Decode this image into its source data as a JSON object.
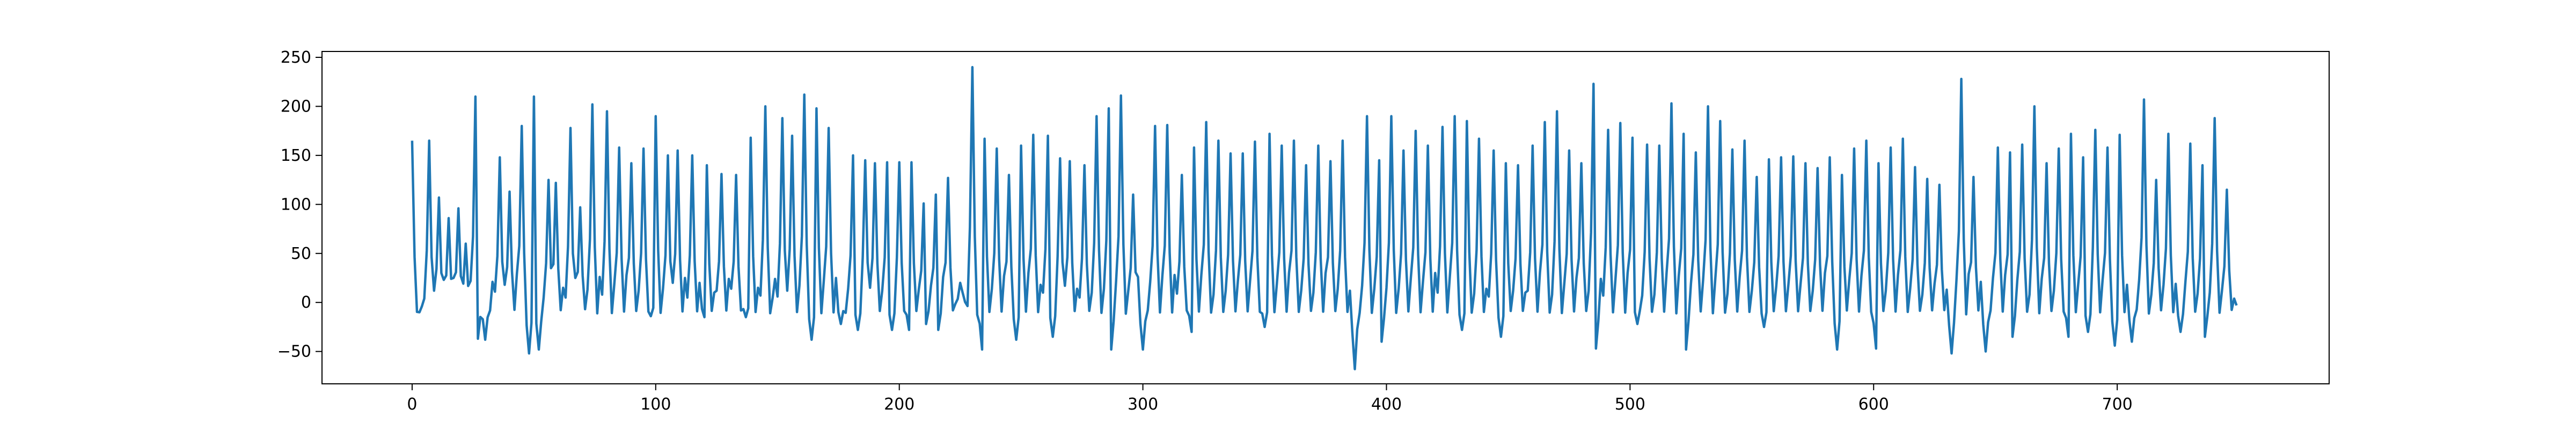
{
  "chart_data": {
    "type": "line",
    "title": "",
    "xlabel": "",
    "ylabel": "",
    "xlim": [
      -37,
      787
    ],
    "ylim": [
      -83,
      256
    ],
    "x_ticks": [
      0,
      100,
      200,
      300,
      400,
      500,
      600,
      700
    ],
    "y_ticks": [
      -50,
      0,
      50,
      100,
      150,
      200,
      250
    ],
    "grid": false,
    "legend": "none",
    "series": [
      {
        "color": "#1f77b4",
        "x_start": 0,
        "x_end": 749,
        "waveform": "repeating sharp peaks with small secondary bumps and troughs (ECG-like)",
        "spikes": [
          [
            0,
            165
          ],
          [
            7,
            165
          ],
          [
            11,
            107
          ],
          [
            15,
            86
          ],
          [
            19,
            96
          ],
          [
            22,
            60
          ],
          [
            26,
            210
          ],
          [
            30,
            128
          ],
          [
            36,
            148
          ],
          [
            40,
            113
          ],
          [
            45,
            180
          ],
          [
            50,
            210
          ],
          [
            56,
            125
          ],
          [
            59,
            122
          ],
          [
            65,
            178
          ],
          [
            69,
            97
          ],
          [
            74,
            202
          ],
          [
            80,
            195
          ],
          [
            85,
            158
          ],
          [
            90,
            142
          ],
          [
            95,
            157
          ],
          [
            100,
            190
          ],
          [
            105,
            150
          ],
          [
            109,
            155
          ],
          [
            115,
            150
          ],
          [
            121,
            140
          ],
          [
            127,
            131
          ],
          [
            133,
            130
          ],
          [
            139,
            168
          ],
          [
            145,
            200
          ],
          [
            152,
            188
          ],
          [
            156,
            170
          ],
          [
            161,
            212
          ],
          [
            166,
            198
          ],
          [
            171,
            178
          ],
          [
            176,
            190
          ],
          [
            181,
            150
          ],
          [
            186,
            145
          ],
          [
            190,
            142
          ],
          [
            195,
            143
          ],
          [
            200,
            143
          ],
          [
            205,
            143
          ],
          [
            210,
            101
          ],
          [
            215,
            110
          ],
          [
            220,
            127
          ],
          [
            230,
            240
          ],
          [
            235,
            167
          ],
          [
            240,
            157
          ],
          [
            245,
            130
          ],
          [
            250,
            160
          ],
          [
            255,
            171
          ],
          [
            261,
            170
          ],
          [
            266,
            147
          ],
          [
            270,
            144
          ],
          [
            276,
            140
          ],
          [
            281,
            190
          ],
          [
            286,
            198
          ],
          [
            291,
            211
          ],
          [
            296,
            110
          ],
          [
            300,
            128
          ],
          [
            305,
            180
          ],
          [
            310,
            181
          ],
          [
            316,
            130
          ],
          [
            321,
            158
          ],
          [
            326,
            184
          ],
          [
            331,
            165
          ],
          [
            336,
            152
          ],
          [
            341,
            152
          ],
          [
            346,
            164
          ],
          [
            352,
            172
          ],
          [
            357,
            160
          ],
          [
            362,
            165
          ],
          [
            367,
            140
          ],
          [
            372,
            160
          ],
          [
            377,
            144
          ],
          [
            382,
            165
          ],
          [
            387,
            193
          ],
          [
            392,
            190
          ],
          [
            397,
            145
          ],
          [
            402,
            190
          ],
          [
            407,
            155
          ],
          [
            412,
            175
          ],
          [
            417,
            160
          ],
          [
            423,
            179
          ],
          [
            428,
            190
          ],
          [
            433,
            185
          ],
          [
            438,
            167
          ],
          [
            444,
            155
          ],
          [
            449,
            142
          ],
          [
            454,
            140
          ],
          [
            460,
            160
          ],
          [
            465,
            184
          ],
          [
            470,
            195
          ],
          [
            475,
            155
          ],
          [
            480,
            142
          ],
          [
            485,
            223
          ],
          [
            491,
            176
          ],
          [
            496,
            183
          ],
          [
            501,
            168
          ],
          [
            507,
            161
          ],
          [
            512,
            160
          ],
          [
            517,
            203
          ],
          [
            522,
            172
          ],
          [
            527,
            153
          ],
          [
            532,
            200
          ],
          [
            537,
            185
          ],
          [
            542,
            156
          ],
          [
            547,
            165
          ],
          [
            552,
            128
          ],
          [
            557,
            146
          ],
          [
            562,
            148
          ],
          [
            567,
            149
          ],
          [
            572,
            142
          ],
          [
            577,
            137
          ],
          [
            582,
            148
          ],
          [
            587,
            130
          ],
          [
            592,
            157
          ],
          [
            597,
            165
          ],
          [
            602,
            142
          ],
          [
            607,
            158
          ],
          [
            612,
            167
          ],
          [
            617,
            138
          ],
          [
            622,
            126
          ],
          [
            627,
            120
          ],
          [
            632,
            107
          ],
          [
            636,
            228
          ],
          [
            641,
            128
          ],
          [
            646,
            132
          ],
          [
            651,
            158
          ],
          [
            656,
            153
          ],
          [
            661,
            161
          ],
          [
            666,
            200
          ],
          [
            671,
            142
          ],
          [
            676,
            157
          ],
          [
            681,
            172
          ],
          [
            686,
            148
          ],
          [
            691,
            176
          ],
          [
            696,
            158
          ],
          [
            701,
            171
          ],
          [
            706,
            107
          ],
          [
            711,
            207
          ],
          [
            716,
            125
          ],
          [
            721,
            172
          ],
          [
            726,
            128
          ],
          [
            730,
            162
          ],
          [
            735,
            140
          ],
          [
            740,
            188
          ],
          [
            745,
            115
          ]
        ],
        "troughs": [
          [
            3,
            -10
          ],
          [
            27,
            -37
          ],
          [
            30,
            -38
          ],
          [
            48,
            -52
          ],
          [
            52,
            -48
          ],
          [
            98,
            -14
          ],
          [
            120,
            -15
          ],
          [
            137,
            -15
          ],
          [
            164,
            -38
          ],
          [
            176,
            -22
          ],
          [
            183,
            -28
          ],
          [
            197,
            -28
          ],
          [
            204,
            -28
          ],
          [
            211,
            -22
          ],
          [
            216,
            -28
          ],
          [
            234,
            -48
          ],
          [
            248,
            -38
          ],
          [
            263,
            -35
          ],
          [
            287,
            -48
          ],
          [
            300,
            -48
          ],
          [
            320,
            -30
          ],
          [
            350,
            -25
          ],
          [
            387,
            -68
          ],
          [
            398,
            -40
          ],
          [
            431,
            -28
          ],
          [
            447,
            -35
          ],
          [
            486,
            -47
          ],
          [
            503,
            -22
          ],
          [
            523,
            -48
          ],
          [
            555,
            -25
          ],
          [
            585,
            -48
          ],
          [
            601,
            -47
          ],
          [
            632,
            -52
          ],
          [
            646,
            -50
          ],
          [
            657,
            -35
          ],
          [
            680,
            -35
          ],
          [
            688,
            -30
          ],
          [
            699,
            -44
          ],
          [
            706,
            -40
          ],
          [
            726,
            -30
          ],
          [
            736,
            -35
          ]
        ],
        "last_value": -3
      }
    ]
  }
}
